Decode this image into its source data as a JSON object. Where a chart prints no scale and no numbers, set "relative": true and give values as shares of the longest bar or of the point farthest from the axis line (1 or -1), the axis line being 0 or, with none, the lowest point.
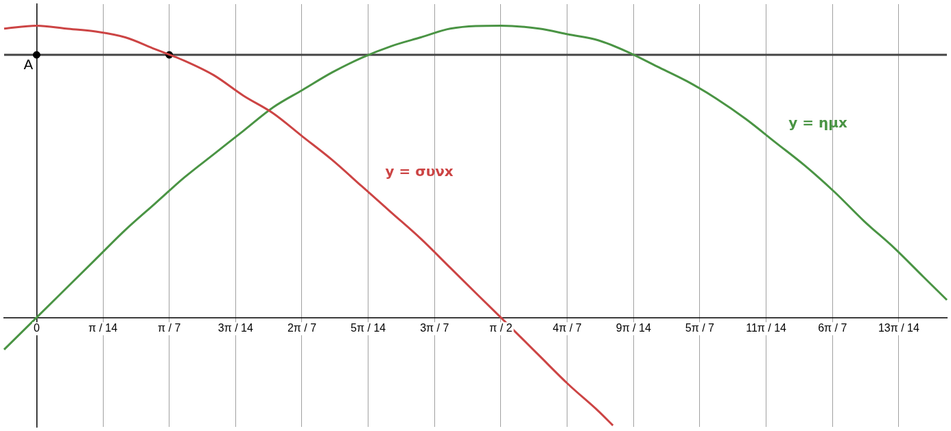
{
  "chart_data": {
    "type": "line",
    "relative": true,
    "xlim": [
      -0.11,
      3.08
    ],
    "xticks": [
      {
        "value": 0,
        "label": "0"
      },
      {
        "value": 0.2244,
        "label": "π / 14"
      },
      {
        "value": 0.4488,
        "label": "π / 7"
      },
      {
        "value": 0.6732,
        "label": "3π / 14"
      },
      {
        "value": 0.8976,
        "label": "2π / 7"
      },
      {
        "value": 1.122,
        "label": "5π / 14"
      },
      {
        "value": 1.3464,
        "label": "3π / 7"
      },
      {
        "value": 1.5708,
        "label": "π / 2"
      },
      {
        "value": 1.7952,
        "label": "4π / 7"
      },
      {
        "value": 2.0196,
        "label": "9π / 14"
      },
      {
        "value": 2.244,
        "label": "5π / 7"
      },
      {
        "value": 2.4684,
        "label": "11π / 14"
      },
      {
        "value": 2.6928,
        "label": "6π / 7"
      },
      {
        "value": 2.9172,
        "label": "13π / 14"
      }
    ],
    "grid": "x",
    "legend": false,
    "marker": "none",
    "line_style": "solid",
    "series": [
      {
        "name": "y = συνx",
        "color": "#cc4444",
        "x": [
          -0.11,
          0,
          0.1,
          0.2,
          0.3,
          0.4,
          0.5,
          0.6,
          0.7,
          0.8,
          0.9,
          1.0,
          1.1,
          1.2,
          1.3,
          1.4,
          1.5,
          1.5708,
          1.7,
          1.8,
          1.9,
          1.95
        ],
        "values": [
          0.99,
          1.0,
          0.99,
          0.98,
          0.96,
          0.92,
          0.88,
          0.83,
          0.76,
          0.7,
          0.62,
          0.54,
          0.45,
          0.36,
          0.27,
          0.17,
          0.07,
          0,
          -0.13,
          -0.23,
          -0.32,
          -0.37
        ]
      },
      {
        "name": "y = ημx",
        "color": "#4a9444",
        "x": [
          -0.11,
          0,
          0.1,
          0.2,
          0.3,
          0.4,
          0.5,
          0.6,
          0.7,
          0.8,
          0.9,
          1.0,
          1.1,
          1.2,
          1.3,
          1.4,
          1.5708,
          1.7,
          1.8,
          1.9,
          2.0,
          2.1,
          2.2,
          2.3,
          2.4,
          2.5,
          2.6,
          2.7,
          2.8,
          2.9,
          3.0,
          3.08
        ],
        "values": [
          -0.11,
          0,
          0.1,
          0.2,
          0.3,
          0.39,
          0.48,
          0.56,
          0.64,
          0.72,
          0.78,
          0.84,
          0.89,
          0.93,
          0.96,
          0.99,
          1.0,
          0.99,
          0.97,
          0.95,
          0.91,
          0.86,
          0.81,
          0.75,
          0.68,
          0.6,
          0.52,
          0.43,
          0.33,
          0.24,
          0.14,
          0.06
        ]
      },
      {
        "type": "scatter",
        "color": "#000000",
        "marker": "circle",
        "x": [
          0,
          0.4488
        ],
        "values": [
          0.9,
          0.9
        ]
      }
    ],
    "ref_lines": [
      {
        "axis": "y",
        "value": 0.9,
        "color": "#444444"
      }
    ],
    "annotations": [
      {
        "text": "A",
        "x": 0,
        "y": 0.9
      }
    ]
  }
}
